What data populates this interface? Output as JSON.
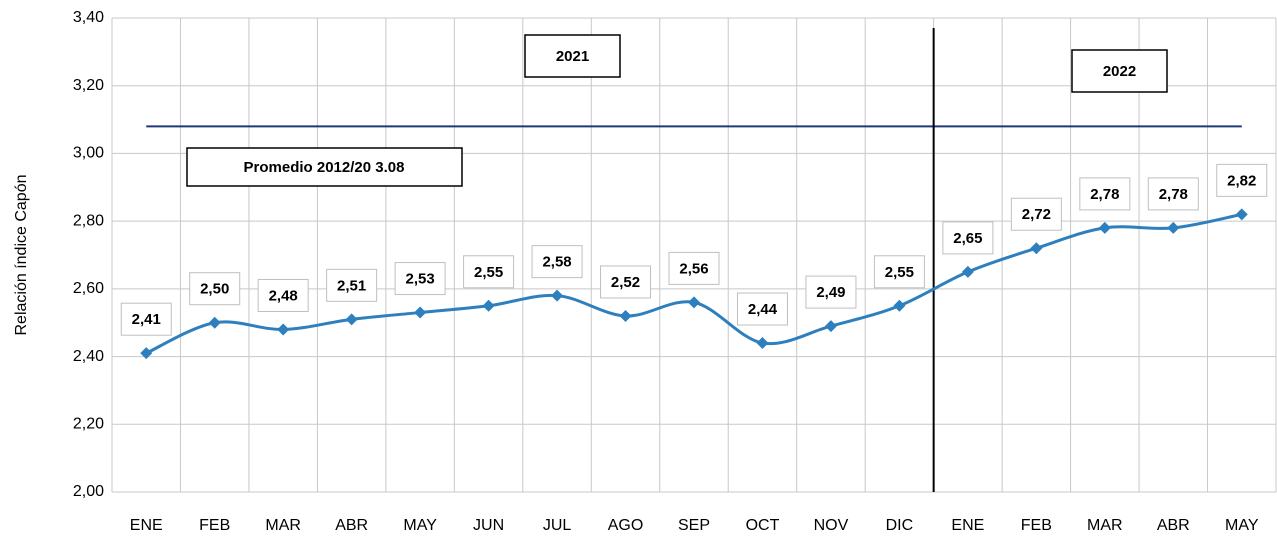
{
  "chart_data": {
    "type": "line",
    "y_label": "Relación índice Capón",
    "categories": [
      "ENE",
      "FEB",
      "MAR",
      "ABR",
      "MAY",
      "JUN",
      "JUL",
      "AGO",
      "SEP",
      "OCT",
      "NOV",
      "DIC",
      "ENE",
      "FEB",
      "MAR",
      "ABR",
      "MAY"
    ],
    "series": [
      {
        "name": "Relación índice Capón",
        "color": "#2e7fbd",
        "values": [
          2.41,
          2.5,
          2.48,
          2.51,
          2.53,
          2.55,
          2.58,
          2.52,
          2.56,
          2.44,
          2.49,
          2.55,
          2.65,
          2.72,
          2.78,
          2.78,
          2.82
        ],
        "value_labels": [
          "2,41",
          "2,50",
          "2,48",
          "2,51",
          "2,53",
          "2,55",
          "2,58",
          "2,52",
          "2,56",
          "2,44",
          "2,49",
          "2,55",
          "2,65",
          "2,72",
          "2,78",
          "2,78",
          "2,82"
        ]
      }
    ],
    "ylim": [
      2.0,
      3.4
    ],
    "yticks": [
      {
        "value": 2.0,
        "label": "2,00"
      },
      {
        "value": 2.2,
        "label": "2,20"
      },
      {
        "value": 2.4,
        "label": "2,40"
      },
      {
        "value": 2.6,
        "label": "2,60"
      },
      {
        "value": 2.8,
        "label": "2,80"
      },
      {
        "value": 3.0,
        "label": "3,00"
      },
      {
        "value": 3.2,
        "label": "3,20"
      },
      {
        "value": 3.4,
        "label": "3,40"
      }
    ],
    "grid": true,
    "reference_line": {
      "value": 3.08,
      "label": "Promedio 2012/20 3.08",
      "color": "#1f3a7a"
    },
    "annotations": [
      "2021",
      "2022"
    ]
  }
}
